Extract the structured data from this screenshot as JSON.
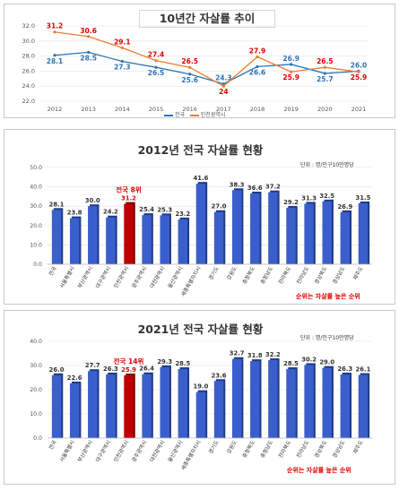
{
  "colors": {
    "national": "#2e74b5",
    "incheon": "#ed7d31",
    "bar": "#3a5fcd",
    "highlight": "#c00000",
    "red_text": "#e00000"
  },
  "chart_data": [
    {
      "type": "line",
      "title": "10년간 자살률 추이",
      "x": [
        "2012",
        "2013",
        "2014",
        "2015",
        "2016",
        "2017",
        "2018",
        "2019",
        "2020",
        "2021"
      ],
      "ylim": [
        22.0,
        32.0
      ],
      "yticks": [
        "32.0",
        "30.0",
        "28.0",
        "26.0",
        "24.0",
        "22.0"
      ],
      "series": [
        {
          "name": "전국",
          "values": [
            28.1,
            28.5,
            27.3,
            26.5,
            25.6,
            24.3,
            26.6,
            26.9,
            25.7,
            26.0
          ]
        },
        {
          "name": "인천광역시",
          "values": [
            31.2,
            30.6,
            29.1,
            27.4,
            26.5,
            24.0,
            27.9,
            25.9,
            26.5,
            25.9
          ]
        }
      ],
      "value_labels": {
        "national": [
          "28.1",
          "28.5",
          "27.3",
          "26.5",
          "25.6",
          "24.3",
          "26.6",
          "26.9",
          "25.7",
          "26.0"
        ],
        "incheon": [
          "31.2",
          "30.6",
          "29.1",
          "27.4",
          "26.5",
          "24",
          "27.9",
          "25.9",
          "26.5",
          "25.9"
        ]
      },
      "legend": "bottom"
    },
    {
      "type": "bar",
      "title": "2012년 전국 자살률 현황",
      "unit": "단위 : 명/인구10만명당",
      "categories": [
        "전국",
        "서울특별시",
        "부산광역시",
        "대구광역시",
        "인천광역시",
        "광주광역시",
        "대전광역시",
        "울산광역시",
        "세종특별자치시",
        "경기도",
        "강원도",
        "충청북도",
        "충청남도",
        "전라북도",
        "전라남도",
        "경상북도",
        "경상남도",
        "제주도"
      ],
      "values": [
        28.1,
        23.8,
        30.0,
        24.2,
        31.2,
        25.4,
        25.3,
        23.2,
        41.6,
        27.0,
        38.3,
        36.6,
        37.2,
        29.2,
        31.3,
        32.5,
        26.9,
        31.5
      ],
      "value_labels": [
        "28.1",
        "23.8",
        "30.0",
        "24.2",
        "31.2",
        "25.4",
        "25.3",
        "23.2",
        "41.6",
        "27.0",
        "38.3",
        "36.6",
        "37.2",
        "29.2",
        "31.3",
        "32.5",
        "26.9",
        "31.5"
      ],
      "highlight_index": 4,
      "highlight_label": "전국 8위",
      "ylim": [
        0,
        50
      ],
      "yticks": [
        "50.0",
        "40.0",
        "30.0",
        "20.0",
        "10.0",
        "0.0"
      ],
      "note": "순위는 자살률 높은 순위"
    },
    {
      "type": "bar",
      "title": "2021년 전국 자살률 현황",
      "unit": "단위 : 명/인구10만명당",
      "categories": [
        "전국",
        "서울특별시",
        "부산광역시",
        "대구광역시",
        "인천광역시",
        "광주광역시",
        "대전광역시",
        "울산광역시",
        "세종특별자치시",
        "경기도",
        "강원도",
        "충청북도",
        "충청남도",
        "전라북도",
        "전라남도",
        "경상북도",
        "경상남도",
        "제주도"
      ],
      "values": [
        26.0,
        22.6,
        27.7,
        26.3,
        25.9,
        26.4,
        29.3,
        28.5,
        19.0,
        23.6,
        32.7,
        31.8,
        32.2,
        28.5,
        30.2,
        29.0,
        26.3,
        26.1
      ],
      "value_labels": [
        "26.0",
        "22.6",
        "27.7",
        "26.3",
        "25.9",
        "26.4",
        "29.3",
        "28.5",
        "19.0",
        "23.6",
        "32.7",
        "31.8",
        "32.2",
        "28.5",
        "30.2",
        "29.0",
        "26.3",
        "26.1"
      ],
      "highlight_index": 4,
      "highlight_label": "전국 14위",
      "ylim": [
        0,
        40
      ],
      "yticks": [
        "40.0",
        "30.0",
        "20.0",
        "10.0",
        "0.0"
      ],
      "note": "순위는 자살률 높은 순위"
    }
  ]
}
